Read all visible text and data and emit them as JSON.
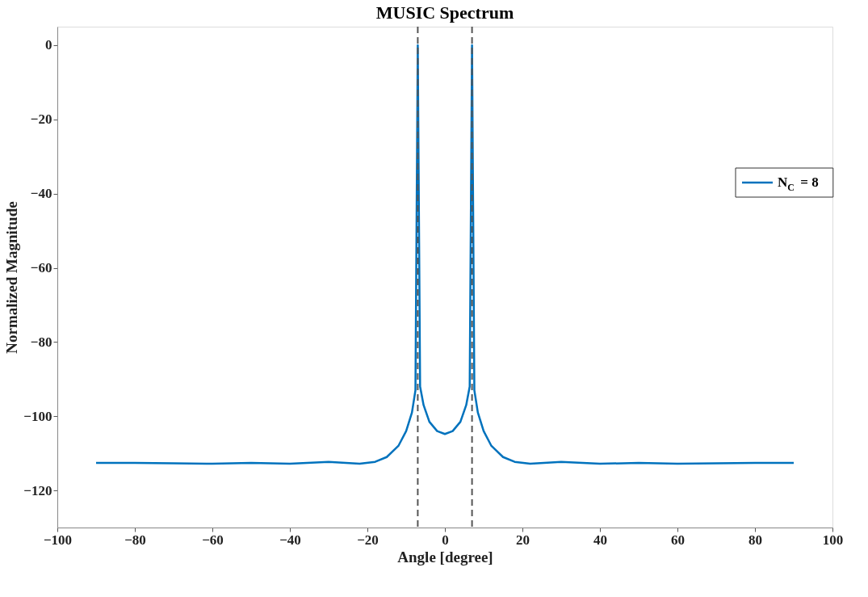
{
  "chart_data": {
    "type": "line",
    "title": "MUSIC Spectrum",
    "xlabel": "Angle [degree]",
    "ylabel": "Normalized Magnitude",
    "x": [
      -90,
      -80,
      -70,
      -60,
      -50,
      -40,
      -30,
      -22,
      -18,
      -15,
      -12,
      -10,
      -8.5,
      -7.6,
      -7,
      -6.4,
      -5.5,
      -4,
      -2,
      0,
      2,
      4,
      5.5,
      6.4,
      7,
      7.6,
      8.5,
      10,
      12,
      15,
      18,
      22,
      30,
      40,
      50,
      60,
      70,
      80,
      90
    ],
    "series": [
      {
        "name": "N$_{C}$ = 8",
        "color": "#0072bd",
        "values": [
          -112.6,
          -112.6,
          -112.7,
          -112.8,
          -112.6,
          -112.8,
          -112.3,
          -112.8,
          -112.3,
          -111,
          -108,
          -104,
          -99,
          -93,
          0,
          -92,
          -97,
          -101.5,
          -104,
          -104.8,
          -104,
          -101.5,
          -97,
          -92,
          0,
          -93,
          -99,
          -104,
          -108,
          -111,
          -112.3,
          -112.8,
          -112.3,
          -112.8,
          -112.6,
          -112.8,
          -112.7,
          -112.6,
          -112.6
        ]
      }
    ],
    "xlim": [
      -100,
      100
    ],
    "xticks": [
      -100,
      -80,
      -60,
      -40,
      -20,
      0,
      20,
      40,
      60,
      80,
      100
    ],
    "ylim": [
      -130,
      5
    ],
    "yticks": [
      -120,
      -100,
      -80,
      -60,
      -40,
      -20,
      0
    ],
    "ref_lines": [
      {
        "axis": "x",
        "value": -7,
        "color": "#555555",
        "line_style": "dashed"
      },
      {
        "axis": "x",
        "value": 7,
        "color": "#555555",
        "line_style": "dashed"
      }
    ],
    "grid": false,
    "legend": "right",
    "line_style": "solid",
    "marker": "none"
  }
}
